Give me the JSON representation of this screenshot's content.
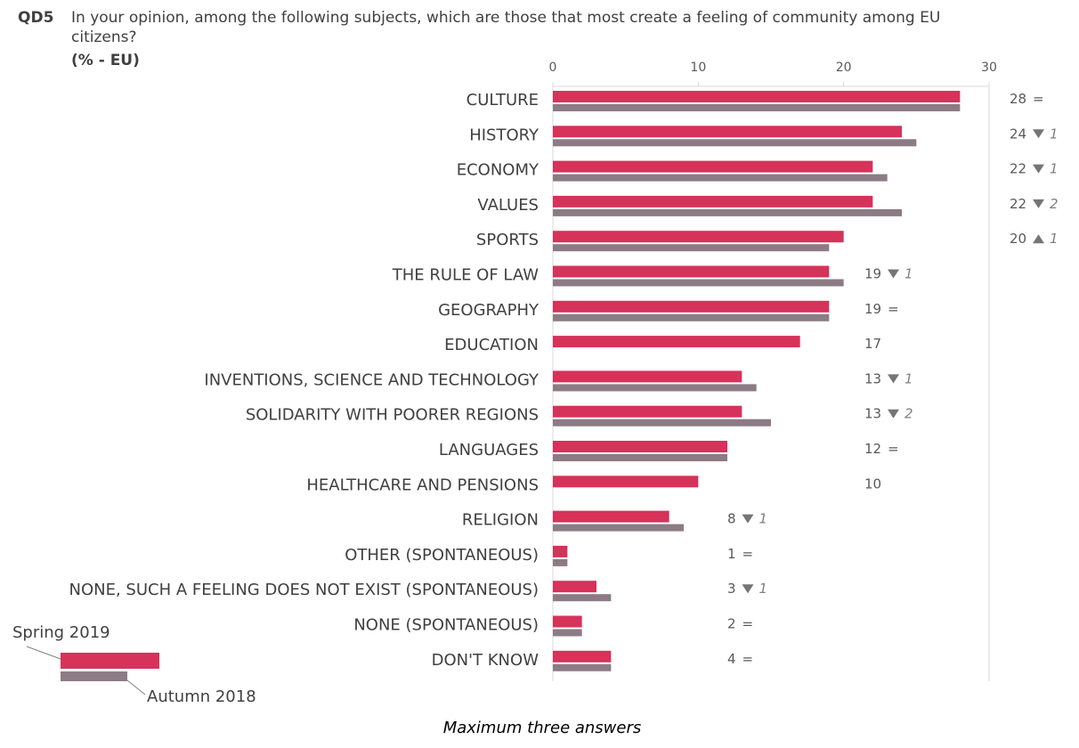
{
  "header": {
    "code": "QD5",
    "question_line1": "In your opinion, among the following subjects, which are those that most create a feeling of community among EU",
    "question_line2": "citizens?",
    "unit": "(% - EU)"
  },
  "footnote": "Maximum three answers",
  "colors": {
    "current": "#d6325a",
    "previous": "#8c7b84",
    "axis": "#d9d9d9"
  },
  "chart_data": {
    "type": "bar",
    "orientation": "horizontal",
    "xlim": [
      0,
      30
    ],
    "ticks": [
      0,
      10,
      20,
      30
    ],
    "categories": [
      "CULTURE",
      "HISTORY",
      "ECONOMY",
      "VALUES",
      "SPORTS",
      "THE RULE OF LAW",
      "GEOGRAPHY",
      "EDUCATION",
      "INVENTIONS, SCIENCE AND TECHNOLOGY",
      "SOLIDARITY WITH POORER REGIONS",
      "LANGUAGES",
      "HEALTHCARE AND PENSIONS",
      "RELIGION",
      "OTHER (SPONTANEOUS)",
      "NONE, SUCH A FEELING DOES NOT EXIST (SPONTANEOUS)",
      "NONE (SPONTANEOUS)",
      "DON'T KNOW"
    ],
    "series": [
      {
        "name": "Spring 2019",
        "values": [
          28,
          24,
          22,
          22,
          20,
          19,
          19,
          17,
          13,
          13,
          12,
          10,
          8,
          1,
          3,
          2,
          4
        ]
      },
      {
        "name": "Autumn 2018",
        "values": [
          28,
          25,
          23,
          24,
          19,
          20,
          19,
          null,
          14,
          15,
          12,
          null,
          9,
          1,
          4,
          2,
          4
        ]
      }
    ],
    "value_labels": [
      "28",
      "24",
      "22",
      "22",
      "20",
      "19",
      "19",
      "17",
      "13",
      "13",
      "12",
      "10",
      "8",
      "1",
      "3",
      "2",
      "4"
    ],
    "changes": [
      {
        "dir": "eq"
      },
      {
        "dir": "down",
        "amount": "1"
      },
      {
        "dir": "down",
        "amount": "1"
      },
      {
        "dir": "down",
        "amount": "2"
      },
      {
        "dir": "up",
        "amount": "1"
      },
      {
        "dir": "down",
        "amount": "1"
      },
      {
        "dir": "eq"
      },
      {
        "dir": "none"
      },
      {
        "dir": "down",
        "amount": "1"
      },
      {
        "dir": "down",
        "amount": "2"
      },
      {
        "dir": "eq"
      },
      {
        "dir": "none"
      },
      {
        "dir": "down",
        "amount": "1"
      },
      {
        "dir": "eq"
      },
      {
        "dir": "down",
        "amount": "1"
      },
      {
        "dir": "eq"
      },
      {
        "dir": "eq"
      }
    ]
  }
}
